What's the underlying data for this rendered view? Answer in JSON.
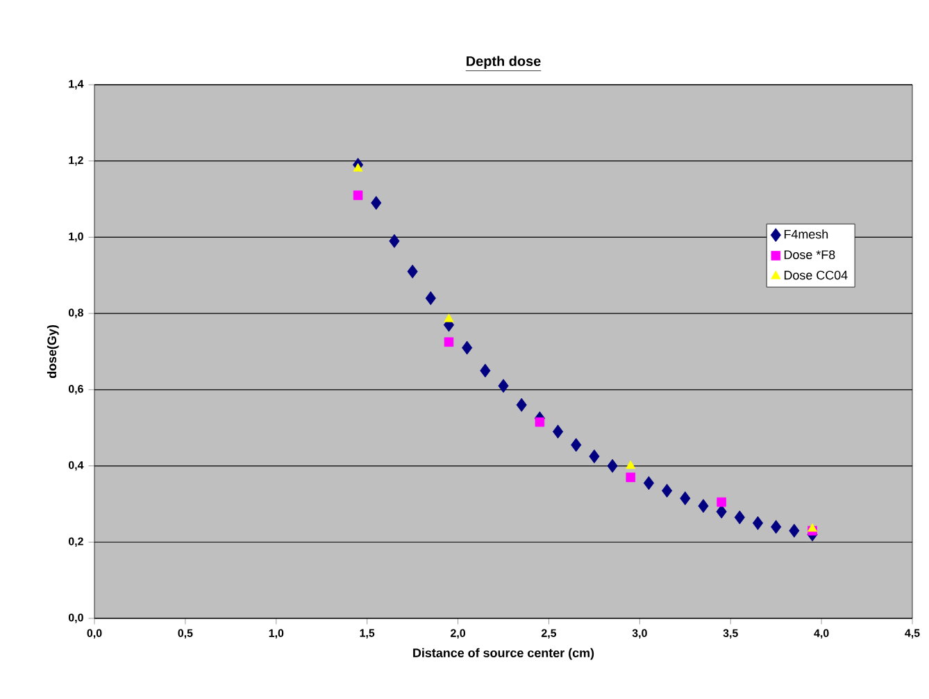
{
  "chart_data": {
    "type": "scatter",
    "title": "Depth dose",
    "xlabel": "Distance of source center (cm)",
    "ylabel": "dose(Gy)",
    "xlim": [
      0,
      4.5
    ],
    "ylim": [
      0,
      1.4
    ],
    "xticks": [
      {
        "value": 0,
        "label": "0,0"
      },
      {
        "value": 0.5,
        "label": "0,5"
      },
      {
        "value": 1,
        "label": "1,0"
      },
      {
        "value": 1.5,
        "label": "1,5"
      },
      {
        "value": 2,
        "label": "2,0"
      },
      {
        "value": 2.5,
        "label": "2,5"
      },
      {
        "value": 3,
        "label": "3,0"
      },
      {
        "value": 3.5,
        "label": "3,5"
      },
      {
        "value": 4,
        "label": "4,0"
      },
      {
        "value": 4.5,
        "label": "4,5"
      }
    ],
    "yticks": [
      {
        "value": 0,
        "label": "0,0"
      },
      {
        "value": 0.2,
        "label": "0,2"
      },
      {
        "value": 0.4,
        "label": "0,4"
      },
      {
        "value": 0.6,
        "label": "0,6"
      },
      {
        "value": 0.8,
        "label": "0,8"
      },
      {
        "value": 1,
        "label": "1,0"
      },
      {
        "value": 1.2,
        "label": "1,2"
      },
      {
        "value": 1.4,
        "label": "1,4"
      }
    ],
    "grid": "y",
    "legend": "right",
    "series": [
      {
        "name": "F4mesh",
        "color": "#000080",
        "marker": "diamond",
        "x": [
          1.45,
          1.55,
          1.65,
          1.75,
          1.85,
          1.95,
          2.05,
          2.15,
          2.25,
          2.35,
          2.45,
          2.55,
          2.65,
          2.75,
          2.85,
          2.95,
          3.05,
          3.15,
          3.25,
          3.35,
          3.45,
          3.55,
          3.65,
          3.75,
          3.85,
          3.95
        ],
        "values": [
          1.19,
          1.09,
          0.99,
          0.91,
          0.84,
          0.77,
          0.71,
          0.65,
          0.61,
          0.56,
          0.525,
          0.49,
          0.455,
          0.425,
          0.4,
          null,
          0.355,
          0.335,
          0.315,
          0.295,
          0.28,
          0.265,
          0.25,
          0.24,
          0.23,
          0.22
        ]
      },
      {
        "name": "Dose *F8",
        "color": "#ff00ff",
        "marker": "square",
        "x": [
          1.45,
          1.95,
          2.45,
          2.95,
          3.45,
          3.95
        ],
        "values": [
          1.11,
          0.725,
          0.515,
          0.37,
          0.305,
          0.23
        ]
      },
      {
        "name": "Dose CC04",
        "color": "#ffff00",
        "marker": "triangle",
        "x": [
          1.45,
          1.95,
          2.95,
          3.95
        ],
        "values": [
          1.18,
          0.785,
          0.4,
          0.235
        ]
      }
    ]
  }
}
